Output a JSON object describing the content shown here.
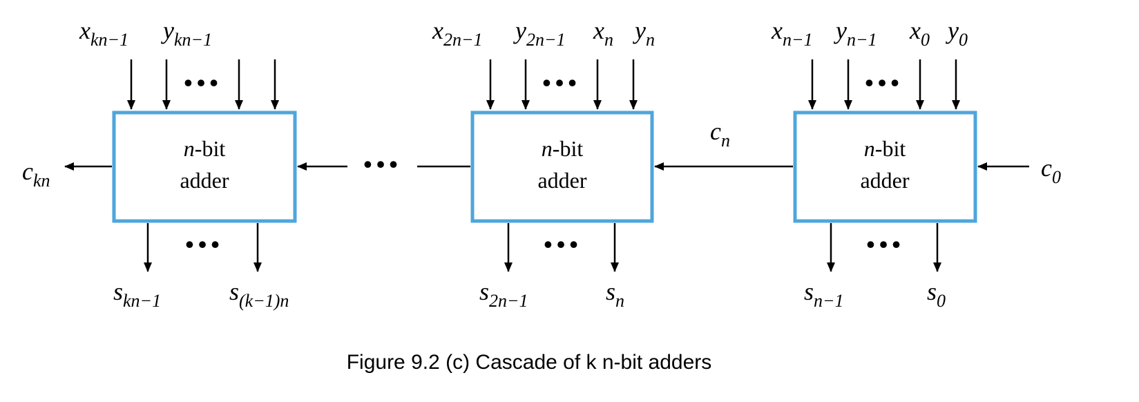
{
  "colors": {
    "box_border": "#4ea6dc",
    "wire": "#000000",
    "background": "#ffffff"
  },
  "adders": [
    {
      "line1_italic": "n",
      "line1_rest": "-bit",
      "line2": "adder",
      "inputs": [
        {
          "base": "x",
          "sub": "kn−1"
        },
        {
          "base": "y",
          "sub": "kn−1"
        }
      ],
      "outputs": [
        {
          "base": "s",
          "sub": "kn−1"
        },
        {
          "base": "s",
          "sub": "(k−1)n"
        }
      ]
    },
    {
      "line1_italic": "n",
      "line1_rest": "-bit",
      "line2": "adder",
      "inputs": [
        {
          "base": "x",
          "sub": "2n−1"
        },
        {
          "base": "y",
          "sub": "2n−1"
        },
        {
          "base": "x",
          "sub": "n"
        },
        {
          "base": "y",
          "sub": "n"
        }
      ],
      "outputs": [
        {
          "base": "s",
          "sub": "2n−1"
        },
        {
          "base": "s",
          "sub": "n"
        }
      ]
    },
    {
      "line1_italic": "n",
      "line1_rest": "-bit",
      "line2": "adder",
      "inputs": [
        {
          "base": "x",
          "sub": "n−1"
        },
        {
          "base": "y",
          "sub": "n−1"
        },
        {
          "base": "x",
          "sub": "0"
        },
        {
          "base": "y",
          "sub": "0"
        }
      ],
      "outputs": [
        {
          "base": "s",
          "sub": "n−1"
        },
        {
          "base": "s",
          "sub": "0"
        }
      ]
    }
  ],
  "carries": {
    "out": {
      "base": "c",
      "sub": "kn"
    },
    "mid": {
      "base": "c",
      "sub": "n"
    },
    "in": {
      "base": "c",
      "sub": "0"
    }
  },
  "ellipsis": "•••",
  "caption": "Figure 9.2 (c) Cascade of k n-bit adders"
}
